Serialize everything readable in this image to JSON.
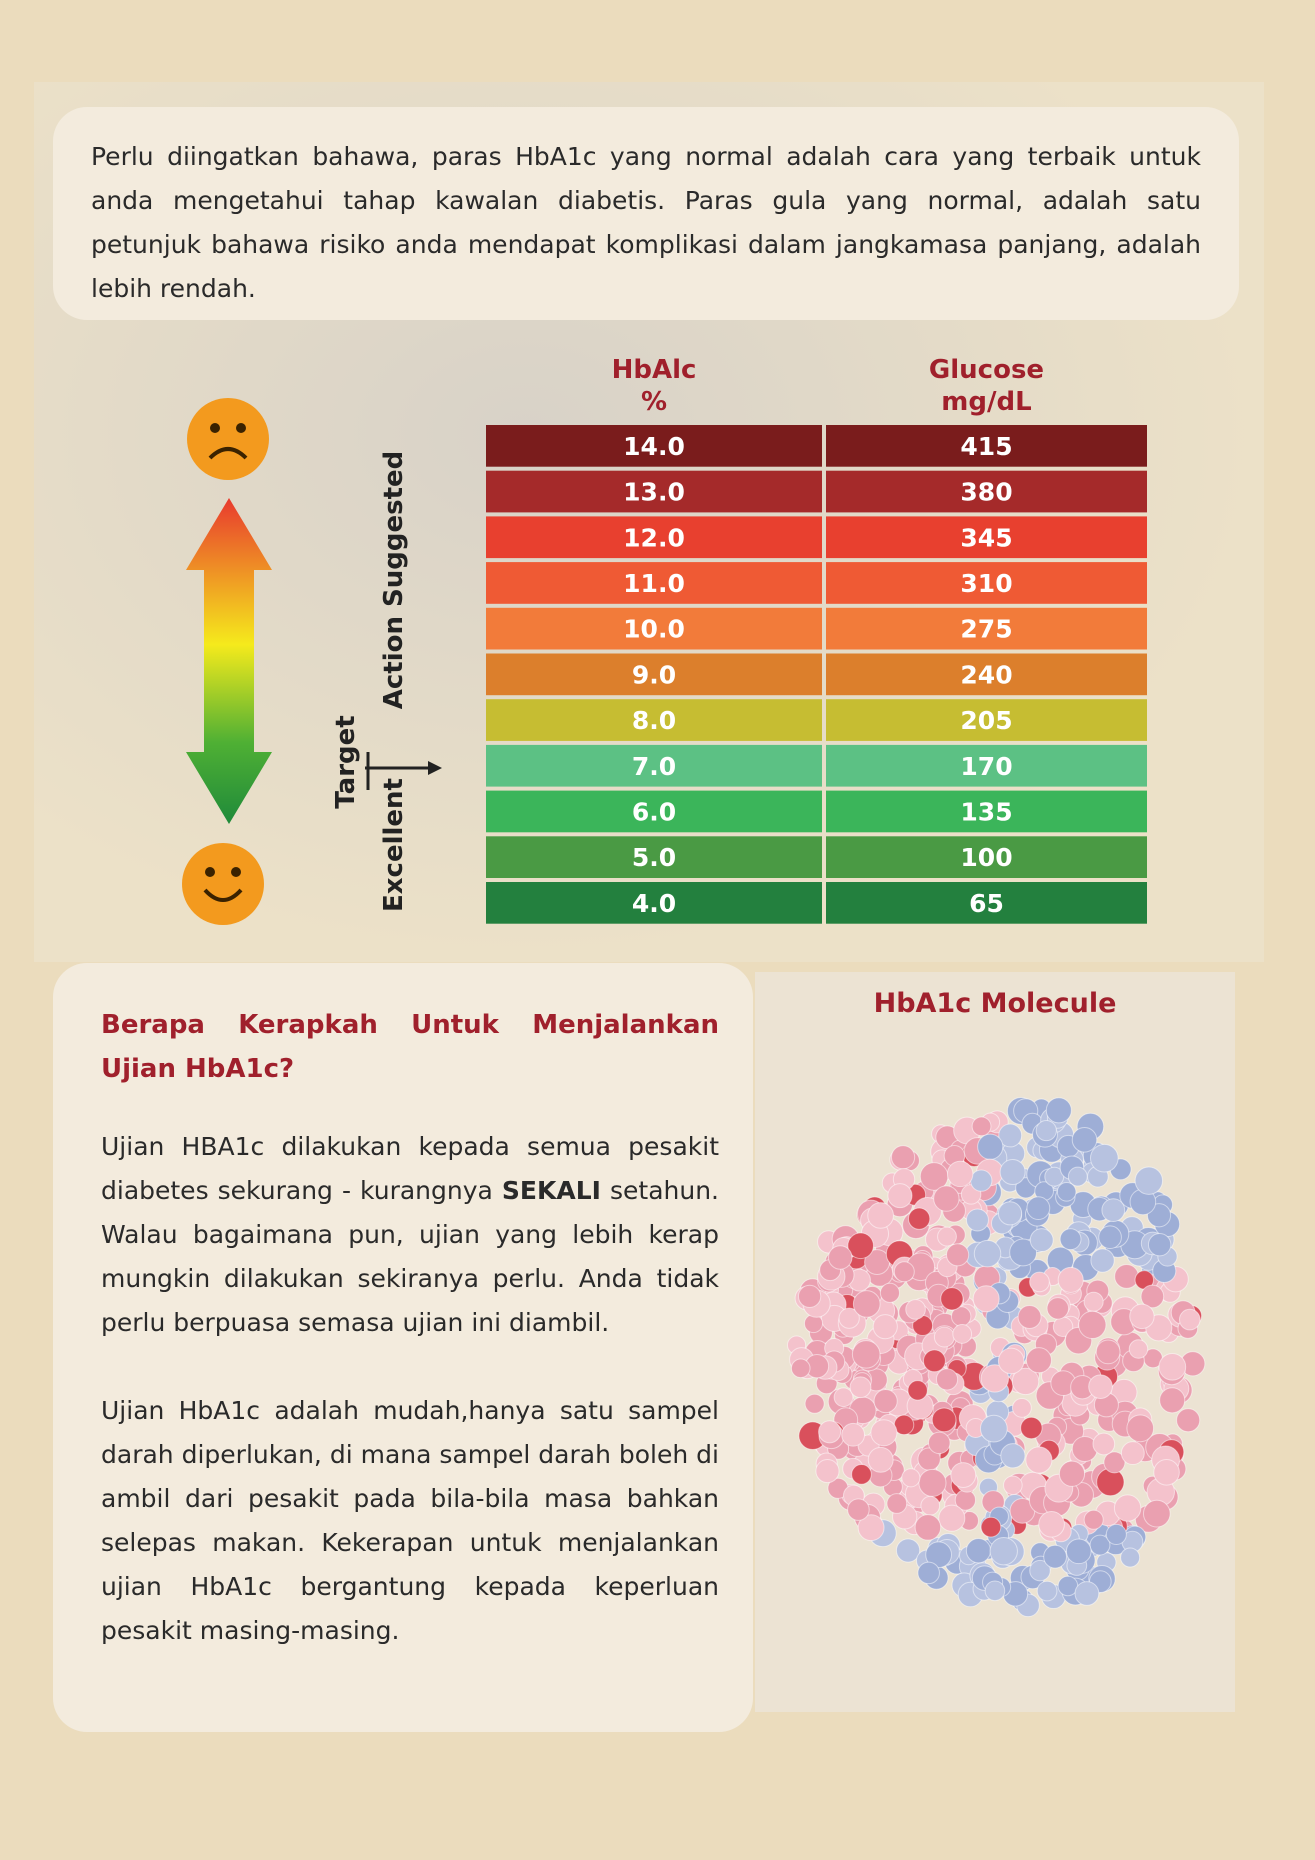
{
  "intro": "Perlu diingatkan bahawa, paras HbA1c yang normal adalah cara yang terbaik untuk anda mengetahui tahap kawalan diabetis. Paras gula yang normal, adalah satu petunjuk bahawa risiko anda mendapat komplikasi dalam jangkamasa panjang, adalah lebih rendah.",
  "table": {
    "headers": [
      [
        "HbAlc",
        "%"
      ],
      [
        "Glucose",
        "mg/dL"
      ]
    ],
    "rows": [
      [
        "14.0",
        "415"
      ],
      [
        "13.0",
        "380"
      ],
      [
        "12.0",
        "345"
      ],
      [
        "11.0",
        "310"
      ],
      [
        "10.0",
        "275"
      ],
      [
        "9.0",
        "240"
      ],
      [
        "8.0",
        "205"
      ],
      [
        "7.0",
        "170"
      ],
      [
        "6.0",
        "135"
      ],
      [
        "5.0",
        "100"
      ],
      [
        "4.0",
        "65"
      ]
    ]
  },
  "scale_labels": {
    "action": "Action Suggested",
    "target": "Target",
    "excellent": "Excellent"
  },
  "section": {
    "heading": "Berapa Kerapkah Untuk Menjalankan Ujian HbA1c?",
    "paragraphs": [
      [
        "Ujian HBA1c dilakukan kepada semua pesakit diabetes sekurang - kurangnya ",
        "SEKALI",
        " setahun. Walau bagaimana pun, ujian yang lebih kerap mungkin dilakukan sekiranya perlu. Anda tidak perlu berpuasa semasa ujian ini diambil."
      ],
      [
        "Ujian HbA1c adalah mudah,hanya satu sampel darah diperlukan, di mana sampel darah boleh di ambil dari pesakit pada bila-bila masa bahkan selepas makan. Kekerapan untuk  menjalankan ujian HbA1c bergantung kepada keperluan pesakit masing-masing."
      ]
    ]
  },
  "molecule_title": "HbA1c Molecule"
}
